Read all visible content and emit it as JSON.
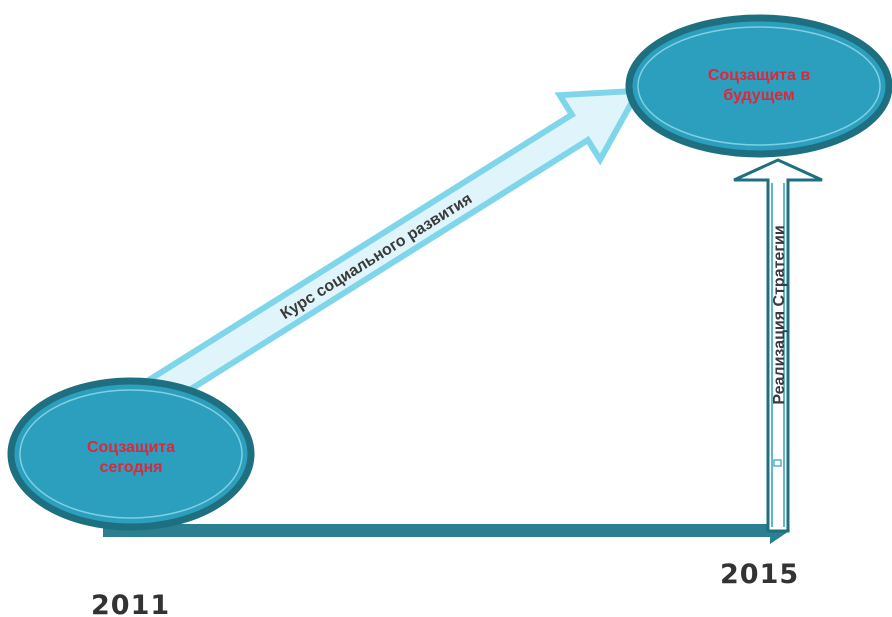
{
  "colors": {
    "node_fill": "#2b9fbd",
    "node_stroke": "#1e6f80",
    "node_text": "#e0263a",
    "timeline": "#2a7f90",
    "big_arrow_fill": "#dff5fb",
    "big_arrow_stroke": "#7fd6ea",
    "vertical_arrow_fill": "#ffffff",
    "vertical_arrow_stroke": "#1e6f80",
    "year_text": "#333333"
  },
  "nodes": {
    "today": {
      "line1": "Соцзащита",
      "line2": "сегодня"
    },
    "future": {
      "line1": "Соцзащита в",
      "line2": "будущем"
    }
  },
  "arrows": {
    "course": {
      "label": "Курс социального развития",
      "icon": "diagonal-arrow"
    },
    "strategy": {
      "label": "Реализация Стратегии",
      "icon": "vertical-arrow"
    },
    "timeline": {
      "icon": "horizontal-arrow"
    }
  },
  "years": {
    "start": "2011",
    "end": "2015"
  }
}
